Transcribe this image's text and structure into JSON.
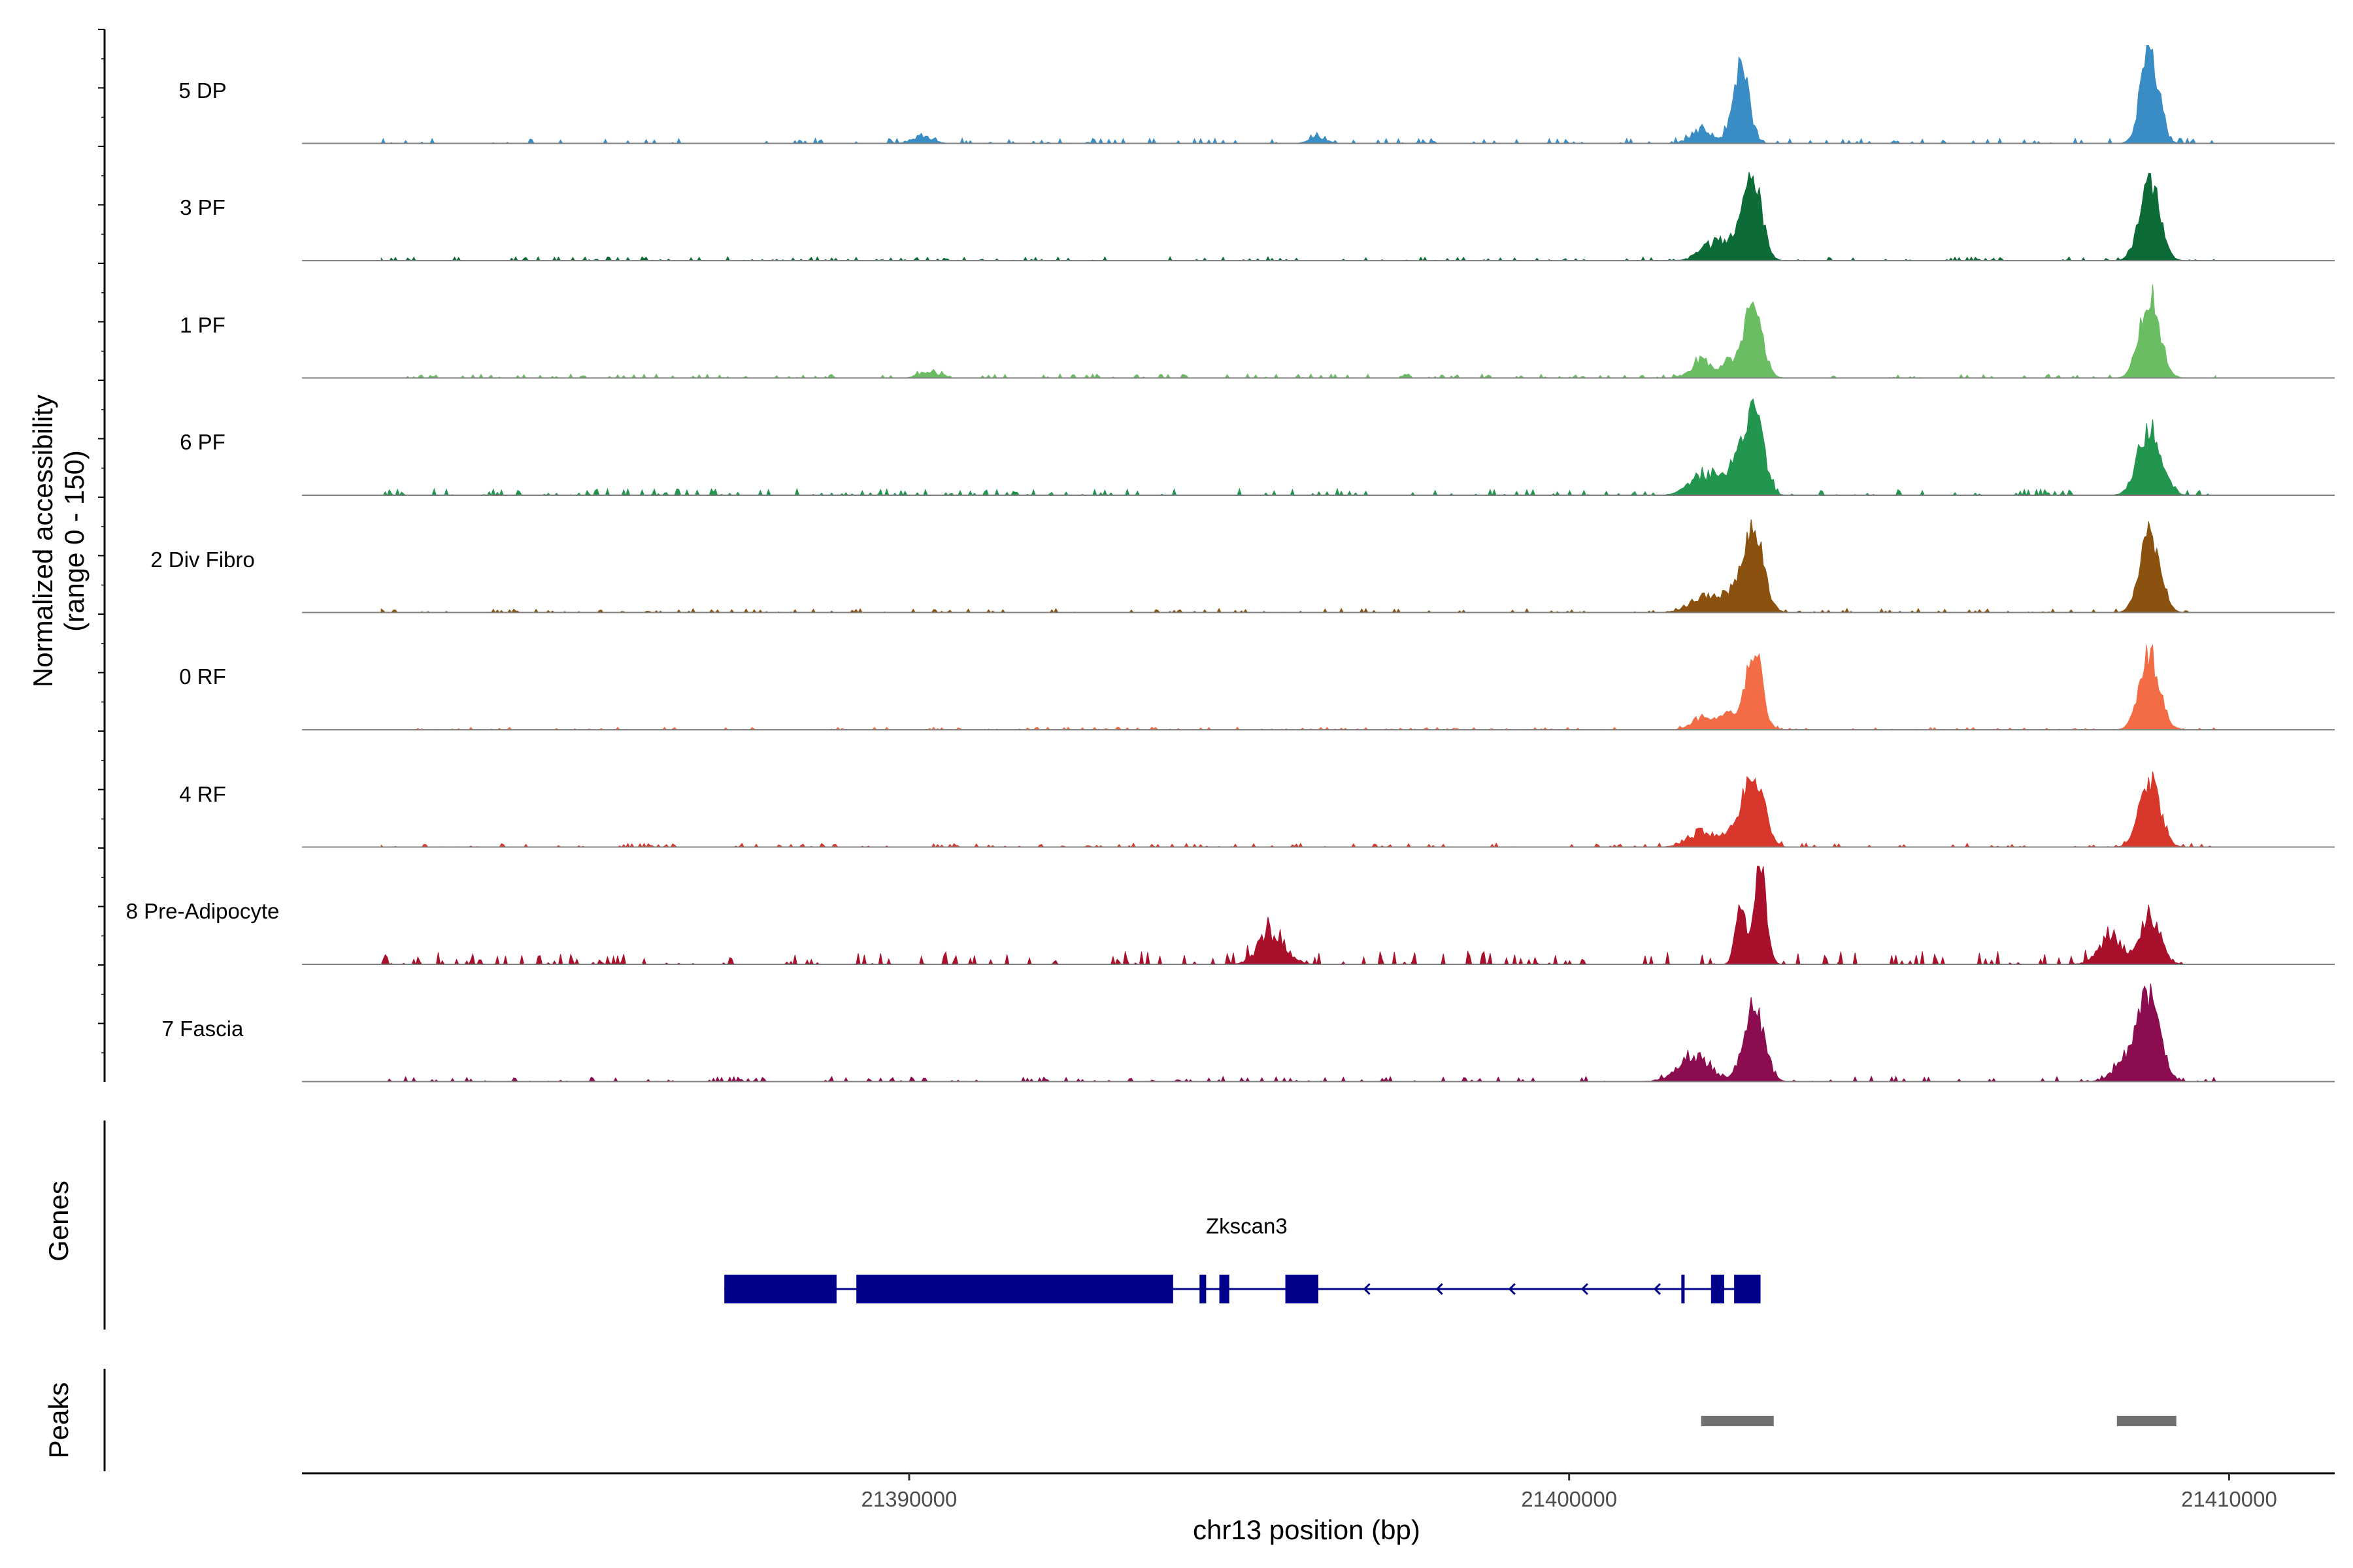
{
  "chart_data": {
    "type": "area",
    "region": "chr13",
    "xlabel": "chr13 position (bp)",
    "xlim": [
      21380800,
      21411600
    ],
    "xticks": [
      21390000,
      21400000,
      21410000
    ],
    "xtick_labels": [
      "21390000",
      "21400000",
      "21410000"
    ],
    "ylabel_line1": "Normalized accessibility",
    "ylabel_line2": "(range 0 - 150)",
    "ylim": [
      0,
      150
    ],
    "tracks": [
      {
        "name": "5 DP",
        "color": "#3a8cc4",
        "peaks": [
          [
            21402600,
            130,
            120
          ],
          [
            21408800,
            150,
            130
          ]
        ],
        "background": 8,
        "bursts": [
          [
            21390200,
            12,
            150
          ],
          [
            21396200,
            12,
            120
          ],
          [
            21402000,
            25,
            150
          ]
        ]
      },
      {
        "name": "3 PF",
        "color": "#0d6b37",
        "peaks": [
          [
            21402800,
            115,
            130
          ],
          [
            21408800,
            125,
            150
          ]
        ],
        "background": 6,
        "bursts": [
          [
            21402200,
            30,
            200
          ],
          [
            21402600,
            40,
            150
          ]
        ]
      },
      {
        "name": "1 PF",
        "color": "#6bbd63",
        "peaks": [
          [
            21402800,
            115,
            130
          ],
          [
            21408800,
            130,
            150
          ]
        ],
        "background": 6,
        "bursts": [
          [
            21390300,
            10,
            150
          ],
          [
            21402000,
            30,
            150
          ],
          [
            21402500,
            30,
            150
          ]
        ]
      },
      {
        "name": "6 PF",
        "color": "#22954e",
        "peaks": [
          [
            21402800,
            130,
            140
          ],
          [
            21408800,
            110,
            170
          ]
        ],
        "background": 10,
        "bursts": [
          [
            21402000,
            35,
            200
          ],
          [
            21402500,
            40,
            200
          ]
        ]
      },
      {
        "name": "2 Div Fibro",
        "color": "#8a520e",
        "peaks": [
          [
            21402800,
            115,
            150
          ],
          [
            21408800,
            130,
            150
          ]
        ],
        "background": 6,
        "bursts": [
          [
            21402000,
            25,
            200
          ],
          [
            21402500,
            35,
            200
          ]
        ]
      },
      {
        "name": "0 RF",
        "color": "#f26c45",
        "peaks": [
          [
            21402800,
            130,
            120
          ],
          [
            21408800,
            120,
            150
          ]
        ],
        "background": 4,
        "bursts": [
          [
            21402000,
            20,
            150
          ],
          [
            21402400,
            25,
            150
          ]
        ]
      },
      {
        "name": "4 RF",
        "color": "#d8382b",
        "peaks": [
          [
            21402800,
            120,
            150
          ],
          [
            21408800,
            110,
            150
          ]
        ],
        "background": 6,
        "bursts": [
          [
            21402000,
            25,
            200
          ],
          [
            21402500,
            25,
            150
          ]
        ]
      },
      {
        "name": "8 Pre-Adipocyte",
        "color": "#a8102b",
        "peaks": [
          [
            21402600,
            90,
            80
          ],
          [
            21402900,
            150,
            90
          ],
          [
            21408800,
            80,
            150
          ]
        ],
        "background": 20,
        "bursts": [
          [
            21395500,
            55,
            200
          ],
          [
            21408200,
            45,
            180
          ]
        ]
      },
      {
        "name": "7 Fascia",
        "color": "#8b0d4f",
        "peaks": [
          [
            21402800,
            120,
            150
          ],
          [
            21408800,
            130,
            160
          ]
        ],
        "background": 8,
        "bursts": [
          [
            21401900,
            40,
            250
          ],
          [
            21408500,
            45,
            200
          ]
        ]
      }
    ],
    "genes_label": "Genes",
    "gene": {
      "name": "Zkscan3",
      "strand": "-",
      "start": 21387200,
      "end": 21402900,
      "color": "#00008b",
      "exons": [
        [
          21387200,
          21388900
        ],
        [
          21389200,
          21394000
        ],
        [
          21394400,
          21394500
        ],
        [
          21394700,
          21394850
        ],
        [
          21395700,
          21396200
        ],
        [
          21401700,
          21401750
        ],
        [
          21402150,
          21402350
        ],
        [
          21402500,
          21402900
        ]
      ]
    },
    "peaks_label": "Peaks",
    "peaks": [
      [
        21402000,
        21403100
      ],
      [
        21408300,
        21409200
      ]
    ],
    "peaks_color": "#707070"
  }
}
